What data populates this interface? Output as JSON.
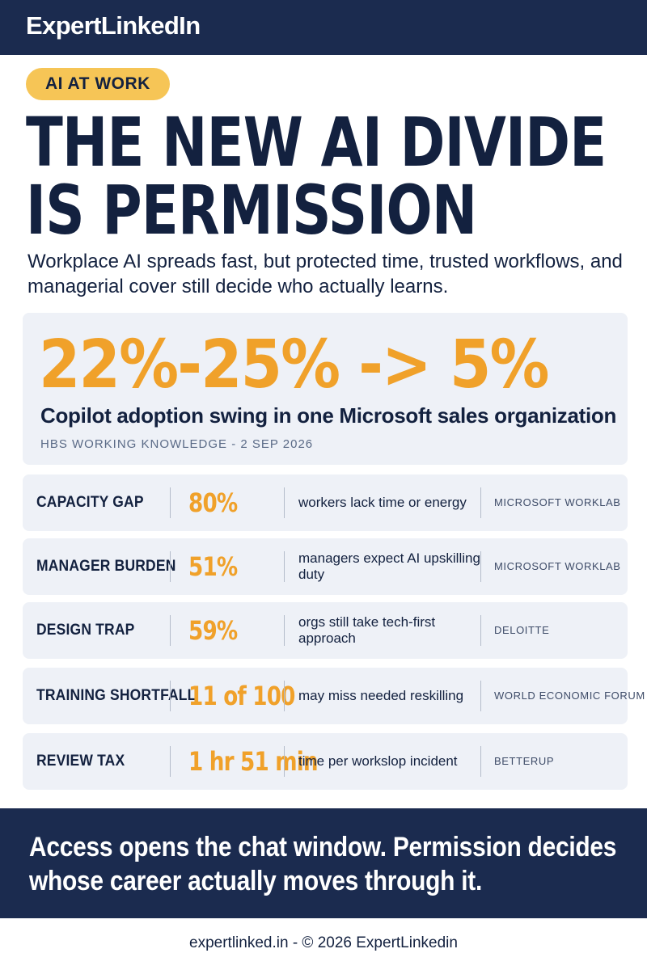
{
  "brand": "ExpertLinkedIn",
  "tag": "AI AT WORK",
  "headline": [
    "THE NEW AI DIVIDE",
    "IS PERMISSION"
  ],
  "subhead": "Workplace AI spreads fast, but protected time, trusted workflows, and managerial cover still decide who actually learns.",
  "hero": {
    "stat": "22%-25% -> 5%",
    "caption": "Copilot adoption swing in one Microsoft sales organization",
    "source": "HBS WORKING KNOWLEDGE - 2 SEP 2026"
  },
  "rows": [
    {
      "label": "CAPACITY GAP",
      "value": "80%",
      "desc": "workers lack time or energy",
      "source": "MICROSOFT WORKLAB"
    },
    {
      "label": "MANAGER BURDEN",
      "value": "51%",
      "desc": "managers expect AI upskilling duty",
      "source": "MICROSOFT WORKLAB"
    },
    {
      "label": "DESIGN TRAP",
      "value": "59%",
      "desc": "orgs still take tech-first approach",
      "source": "DELOITTE"
    },
    {
      "label": "TRAINING SHORTFALL",
      "value": "11 of 100",
      "desc": "may miss needed reskilling",
      "source": "WORLD ECONOMIC FORUM"
    },
    {
      "label": "REVIEW TAX",
      "value": "1 hr 51 min",
      "desc": "time per workslop incident",
      "source": "BETTERUP"
    }
  ],
  "closing": [
    "Access opens the chat window. Permission decides",
    "whose career actually moves through it."
  ],
  "footer": "expertlinked.in - © 2026 ExpertLinkedin",
  "colors": {
    "navy": "#1b2b4f",
    "accent": "#f0a12a",
    "tag": "#f6c556",
    "card": "#eef1f7"
  }
}
